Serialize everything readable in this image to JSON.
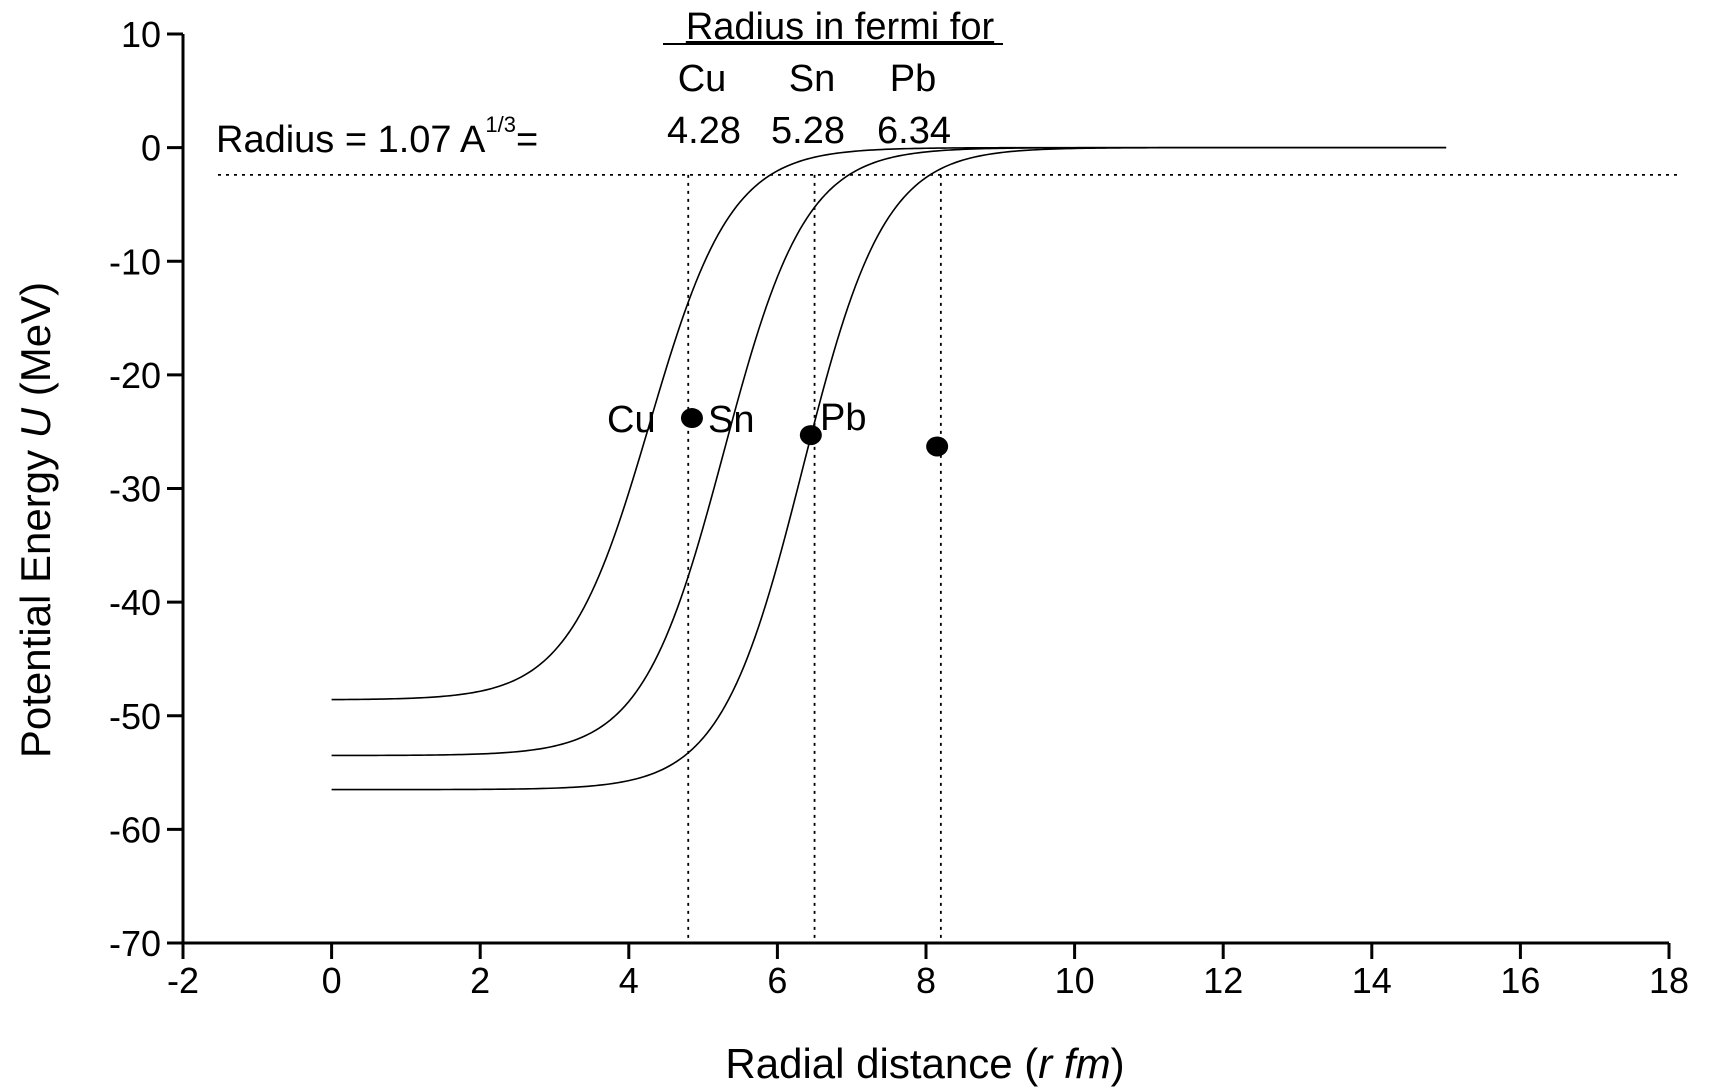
{
  "chart_data": {
    "type": "line",
    "title": "",
    "xlabel": {
      "prefix": "Radial distance (",
      "italic": "r fm",
      "suffix": ")"
    },
    "ylabel": {
      "prefix": "Potential Energy ",
      "italic": "U",
      "suffix": " (MeV)"
    },
    "xlim": [
      -2,
      18
    ],
    "ylim": [
      -70,
      10
    ],
    "xticks": [
      -2,
      0,
      2,
      4,
      6,
      8,
      10,
      12,
      14,
      16,
      18
    ],
    "yticks": [
      10,
      0,
      -10,
      -20,
      -30,
      -40,
      -50,
      -60,
      -70
    ],
    "grid": false,
    "series": [
      {
        "name": "Cu",
        "depth": -48.6,
        "radius": 4.28,
        "diffuseness": 0.55,
        "x_range": [
          0,
          15
        ]
      },
      {
        "name": "Sn",
        "depth": -53.5,
        "radius": 5.28,
        "diffuseness": 0.55,
        "x_range": [
          0,
          15
        ]
      },
      {
        "name": "Pb",
        "depth": -56.5,
        "radius": 6.34,
        "diffuseness": 0.55,
        "x_range": [
          0,
          15
        ]
      }
    ],
    "points": [
      {
        "x": 4.85,
        "y": -23.8
      },
      {
        "x": 6.45,
        "y": -25.3
      },
      {
        "x": 8.15,
        "y": -26.3
      }
    ],
    "reference_lines": {
      "horizontal_y": -2.4,
      "vertical_x": [
        4.8,
        6.5,
        8.2
      ]
    },
    "annotations": {
      "table_title": "Radius in fermi for",
      "elements": [
        "Cu",
        "Sn",
        "Pb"
      ],
      "radii": [
        "4.28",
        "5.28",
        "6.34"
      ],
      "formula_prefix": "Radius = 1.07 A",
      "formula_exponent": "1/3",
      "formula_suffix": "=",
      "curve_labels": [
        "Cu",
        "Sn",
        "Pb"
      ]
    }
  }
}
